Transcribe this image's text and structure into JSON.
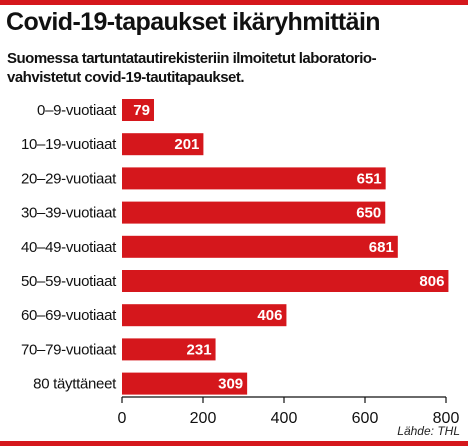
{
  "title": "Covid-19-tapaukset ikäryhmittäin",
  "subtitle_lines": [
    "Suomessa tartuntatautirekisteriin ilmoitetut laboratorio-",
    "vahvistetut covid-19-tautitapaukset."
  ],
  "source": "Lähde: THL",
  "colors": {
    "bar": "#d5171c",
    "text": "#111111",
    "value_text": "#ffffff"
  },
  "chart_data": {
    "type": "bar",
    "orientation": "horizontal",
    "title": "Covid-19-tapaukset ikäryhmittäin",
    "subtitle": "Suomessa tartuntatautirekisteriin ilmoitetut laboratoriovahvistetut covid-19-tautitapaukset.",
    "xlabel": "",
    "ylabel": "",
    "categories": [
      "0–9-vuotiaat",
      "10–19-vuotiaat",
      "20–29-vuotiaat",
      "30–39-vuotiaat",
      "40–49-vuotiaat",
      "50–59-vuotiaat",
      "60–69-vuotiaat",
      "70–79-vuotiaat",
      "80 täyttäneet"
    ],
    "values": [
      79,
      201,
      651,
      650,
      681,
      806,
      406,
      231,
      309
    ],
    "xlim": [
      0,
      800
    ],
    "xticks": [
      0,
      200,
      400,
      600,
      800
    ],
    "grid": false,
    "legend": "none",
    "data_labels": true
  }
}
